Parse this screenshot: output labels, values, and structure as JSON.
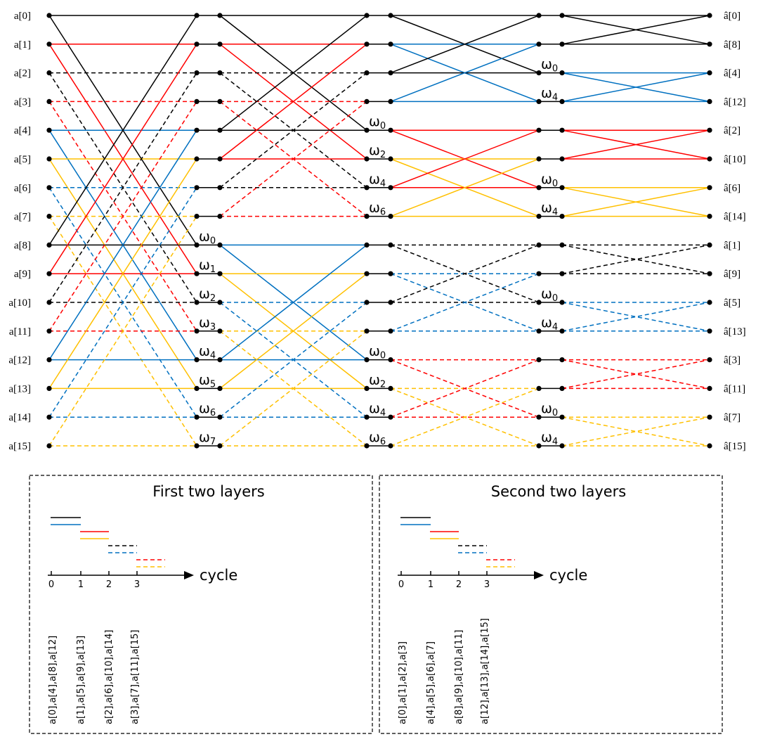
{
  "colors": {
    "k": "#000000",
    "r": "#ff0000",
    "b": "#0070c0",
    "y": "#ffc000"
  },
  "inputs": [
    "a[0]",
    "a[1]",
    "a[2]",
    "a[3]",
    "a[4]",
    "a[5]",
    "a[6]",
    "a[7]",
    "a[8]",
    "a[9]",
    "a[10]",
    "a[11]",
    "a[12]",
    "a[13]",
    "a[14]",
    "a[15]"
  ],
  "outputs": [
    "â[0]",
    "â[8]",
    "â[4]",
    "â[12]",
    "â[2]",
    "â[10]",
    "â[6]",
    "â[14]",
    "â[1]",
    "â[9]",
    "â[5]",
    "â[13]",
    "â[3]",
    "â[11]",
    "â[7]",
    "â[15]"
  ],
  "stages": [
    {
      "span": 8,
      "styles": [
        "k",
        "r",
        "kd",
        "rd",
        "b",
        "y",
        "bd",
        "yd",
        "k",
        "r",
        "kd",
        "rd",
        "b",
        "y",
        "bd",
        "yd"
      ]
    },
    {
      "span": 4,
      "styles": [
        "k",
        "r",
        "kd",
        "rd",
        "k",
        "r",
        "kd",
        "rd",
        "b",
        "y",
        "bd",
        "yd",
        "b",
        "y",
        "bd",
        "yd"
      ]
    },
    {
      "span": 2,
      "styles": [
        "k",
        "b",
        "k",
        "b",
        "r",
        "y",
        "r",
        "y",
        "kd",
        "bd",
        "kd",
        "bd",
        "rd",
        "yd",
        "rd",
        "yd"
      ]
    },
    {
      "span": 1,
      "styles": [
        "k",
        "k",
        "b",
        "b",
        "r",
        "r",
        "y",
        "y",
        "kd",
        "kd",
        "bd",
        "bd",
        "rd",
        "rd",
        "yd",
        "yd"
      ]
    }
  ],
  "twiddles": [
    [
      {
        "row": 8,
        "sub": "0"
      },
      {
        "row": 9,
        "sub": "1"
      },
      {
        "row": 10,
        "sub": "2"
      },
      {
        "row": 11,
        "sub": "3"
      },
      {
        "row": 12,
        "sub": "4"
      },
      {
        "row": 13,
        "sub": "5"
      },
      {
        "row": 14,
        "sub": "6"
      },
      {
        "row": 15,
        "sub": "7"
      }
    ],
    [
      {
        "row": 4,
        "sub": "0"
      },
      {
        "row": 5,
        "sub": "2"
      },
      {
        "row": 6,
        "sub": "4"
      },
      {
        "row": 7,
        "sub": "6"
      },
      {
        "row": 12,
        "sub": "0"
      },
      {
        "row": 13,
        "sub": "2"
      },
      {
        "row": 14,
        "sub": "4"
      },
      {
        "row": 15,
        "sub": "6"
      }
    ],
    [
      {
        "row": 2,
        "sub": "0"
      },
      {
        "row": 3,
        "sub": "4"
      },
      {
        "row": 6,
        "sub": "0"
      },
      {
        "row": 7,
        "sub": "4"
      },
      {
        "row": 10,
        "sub": "0"
      },
      {
        "row": 11,
        "sub": "4"
      },
      {
        "row": 14,
        "sub": "0"
      },
      {
        "row": 15,
        "sub": "4"
      }
    ]
  ],
  "twiddle_symbol": "ω",
  "legends": [
    {
      "title": "First two layers",
      "axis_label": "cycle",
      "ticks": [
        "0",
        "1",
        "2",
        "3"
      ],
      "groups": [
        "a[0],a[4],a[8],a[12]",
        "a[1],a[5],a[9],a[13]",
        "a[2],a[6],a[10],a[14]",
        "a[3],a[7],a[11],a[15]"
      ]
    },
    {
      "title": "Second two layers",
      "axis_label": "cycle",
      "ticks": [
        "0",
        "1",
        "2",
        "3"
      ],
      "groups": [
        "a[0],a[1],a[2],a[3]",
        "a[4],a[5],a[6],a[7]",
        "a[8],a[9],a[10],a[11]",
        "a[12],a[13],a[14],a[15]"
      ]
    }
  ],
  "legend_styles": [
    [
      "k",
      "b"
    ],
    [
      "r",
      "y"
    ],
    [
      "kd",
      "bd"
    ],
    [
      "rd",
      "yd"
    ]
  ]
}
